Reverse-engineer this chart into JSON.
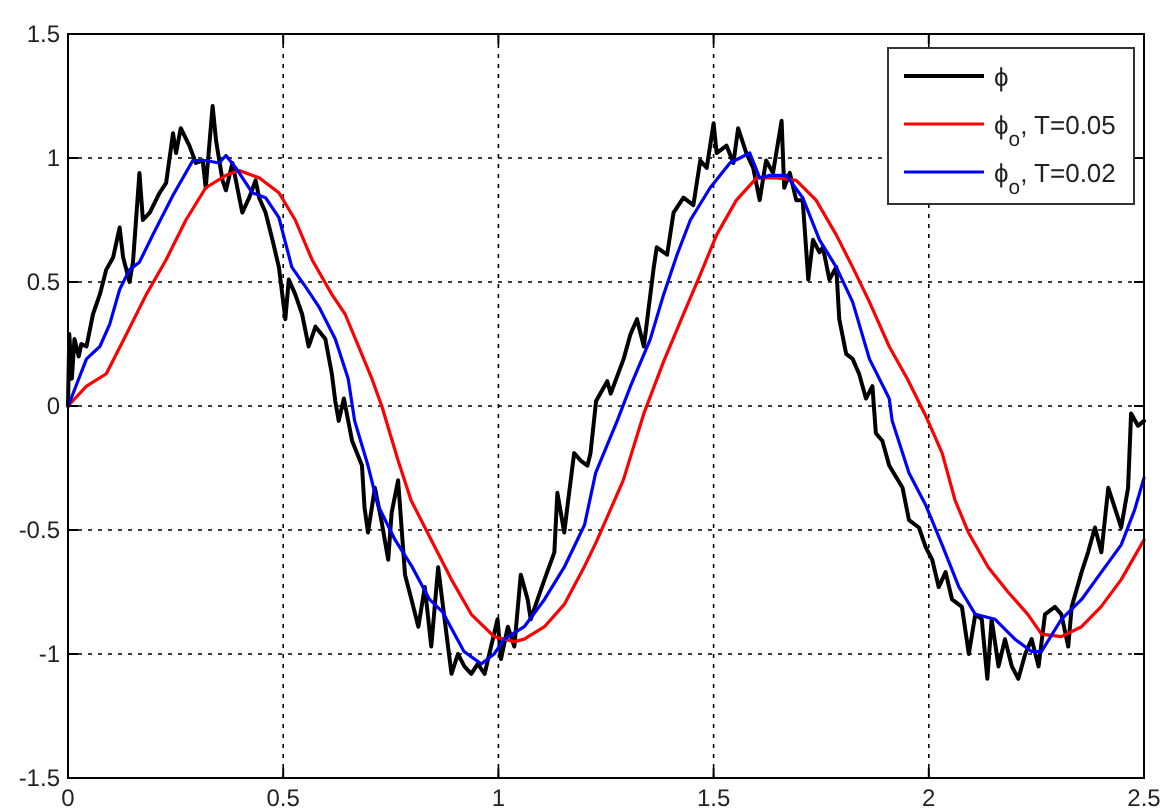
{
  "chart_data": {
    "type": "line",
    "xlim": [
      0,
      2.5
    ],
    "xticks": [
      0,
      0.5,
      1,
      1.5,
      2,
      2.5
    ],
    "ylim": [
      -1.5,
      1.5
    ],
    "yticks": [
      -1.5,
      -1,
      -0.5,
      0,
      0.5,
      1,
      1.5
    ],
    "grid": true,
    "legend": "top right",
    "series": [
      {
        "name": "ϕ",
        "color": "#000000",
        "x": [
          0,
          0.003,
          0.009,
          0.015,
          0.025,
          0.031,
          0.043,
          0.058,
          0.074,
          0.089,
          0.105,
          0.12,
          0.128,
          0.143,
          0.151,
          0.166,
          0.174,
          0.19,
          0.213,
          0.228,
          0.244,
          0.251,
          0.262,
          0.282,
          0.297,
          0.313,
          0.32,
          0.336,
          0.344,
          0.359,
          0.367,
          0.382,
          0.398,
          0.405,
          0.421,
          0.436,
          0.444,
          0.459,
          0.475,
          0.49,
          0.505,
          0.513,
          0.528,
          0.544,
          0.559,
          0.575,
          0.598,
          0.613,
          0.621,
          0.629,
          0.641,
          0.66,
          0.683,
          0.689,
          0.697,
          0.713,
          0.728,
          0.744,
          0.752,
          0.767,
          0.783,
          0.798,
          0.814,
          0.829,
          0.844,
          0.86,
          0.875,
          0.891,
          0.906,
          0.921,
          0.937,
          0.952,
          0.968,
          0.983,
          0.998,
          1.006,
          1.022,
          1.037,
          1.052,
          1.068,
          1.075,
          1.091,
          1.107,
          1.13,
          1.137,
          1.153,
          1.16,
          1.176,
          1.191,
          1.207,
          1.214,
          1.227,
          1.253,
          1.261,
          1.291,
          1.307,
          1.322,
          1.338,
          1.361,
          1.368,
          1.392,
          1.407,
          1.43,
          1.453,
          1.469,
          1.484,
          1.5,
          1.507,
          1.53,
          1.546,
          1.557,
          1.576,
          1.592,
          1.607,
          1.622,
          1.638,
          1.658,
          1.664,
          1.677,
          1.692,
          1.707,
          1.72,
          1.731,
          1.746,
          1.754,
          1.769,
          1.785,
          1.792,
          1.808,
          1.823,
          1.838,
          1.854,
          1.869,
          1.877,
          1.892,
          1.908,
          1.939,
          1.954,
          1.977,
          1.993,
          2.008,
          2.023,
          2.039,
          2.054,
          2.077,
          2.093,
          2.108,
          2.123,
          2.136,
          2.146,
          2.162,
          2.177,
          2.193,
          2.208,
          2.224,
          2.239,
          2.255,
          2.27,
          2.293,
          2.308,
          2.324,
          2.332,
          2.355,
          2.37,
          2.386,
          2.401,
          2.417,
          2.432,
          2.447,
          2.463,
          2.47,
          2.486,
          2.5
        ],
        "values": [
          0,
          0.29,
          0.11,
          0.27,
          0.2,
          0.25,
          0.24,
          0.37,
          0.45,
          0.55,
          0.6,
          0.72,
          0.6,
          0.5,
          0.58,
          0.94,
          0.75,
          0.78,
          0.86,
          0.9,
          1.1,
          1.02,
          1.12,
          1.05,
          0.98,
          0.99,
          0.88,
          1.21,
          1.07,
          0.91,
          0.87,
          0.98,
          0.84,
          0.78,
          0.84,
          0.91,
          0.84,
          0.78,
          0.67,
          0.56,
          0.35,
          0.51,
          0.45,
          0.37,
          0.24,
          0.32,
          0.27,
          0.13,
          0.02,
          -0.06,
          0.03,
          -0.14,
          -0.24,
          -0.41,
          -0.51,
          -0.33,
          -0.46,
          -0.62,
          -0.43,
          -0.3,
          -0.68,
          -0.78,
          -0.89,
          -0.73,
          -0.97,
          -0.65,
          -0.86,
          -1.08,
          -1,
          -1.05,
          -1.08,
          -1.04,
          -1.08,
          -0.97,
          -0.86,
          -1.02,
          -0.89,
          -0.97,
          -0.68,
          -0.78,
          -0.86,
          -0.78,
          -0.7,
          -0.59,
          -0.35,
          -0.51,
          -0.41,
          -0.19,
          -0.22,
          -0.24,
          -0.19,
          0.02,
          0.1,
          0.05,
          0.19,
          0.29,
          0.35,
          0.24,
          0.56,
          0.64,
          0.61,
          0.78,
          0.84,
          0.81,
          0.99,
          0.96,
          1.14,
          1.02,
          1.05,
          0.98,
          1.12,
          1.02,
          0.96,
          0.83,
          0.99,
          0.94,
          1.15,
          0.88,
          0.94,
          0.83,
          0.83,
          0.51,
          0.67,
          0.62,
          0.64,
          0.51,
          0.56,
          0.35,
          0.21,
          0.19,
          0.13,
          0.03,
          0.08,
          -0.11,
          -0.14,
          -0.24,
          -0.33,
          -0.46,
          -0.49,
          -0.57,
          -0.62,
          -0.73,
          -0.67,
          -0.78,
          -0.81,
          -1,
          -0.84,
          -0.86,
          -1.1,
          -0.86,
          -1.05,
          -0.94,
          -1.05,
          -1.1,
          -1,
          -0.94,
          -1.05,
          -0.84,
          -0.81,
          -0.84,
          -0.97,
          -0.81,
          -0.67,
          -0.59,
          -0.49,
          -0.59,
          -0.33,
          -0.41,
          -0.49,
          -0.33,
          -0.03,
          -0.08,
          -0.06
        ]
      },
      {
        "name": "ϕ$_{o}$, T=0.05",
        "color": "#ff0000",
        "x": [
          0,
          0.043,
          0.089,
          0.136,
          0.182,
          0.228,
          0.274,
          0.32,
          0.367,
          0.398,
          0.444,
          0.49,
          0.528,
          0.567,
          0.613,
          0.644,
          0.675,
          0.706,
          0.729,
          0.767,
          0.797,
          0.844,
          0.891,
          0.937,
          0.99,
          1.037,
          1.06,
          1.107,
          1.153,
          1.199,
          1.227,
          1.29,
          1.338,
          1.384,
          1.43,
          1.469,
          1.507,
          1.553,
          1.6,
          1.646,
          1.692,
          1.738,
          1.785,
          1.823,
          1.862,
          1.908,
          1.95,
          1.993,
          2.031,
          2.061,
          2.092,
          2.138,
          2.184,
          2.23,
          2.262,
          2.308,
          2.355,
          2.4,
          2.447,
          2.5
        ],
        "values": [
          0,
          0.08,
          0.13,
          0.29,
          0.45,
          0.59,
          0.75,
          0.88,
          0.93,
          0.95,
          0.92,
          0.86,
          0.75,
          0.59,
          0.45,
          0.37,
          0.24,
          0.11,
          0,
          -0.22,
          -0.38,
          -0.54,
          -0.7,
          -0.84,
          -0.93,
          -0.95,
          -0.94,
          -0.89,
          -0.8,
          -0.65,
          -0.55,
          -0.3,
          -0.03,
          0.18,
          0.37,
          0.53,
          0.69,
          0.83,
          0.92,
          0.92,
          0.91,
          0.83,
          0.69,
          0.56,
          0.42,
          0.24,
          0.11,
          -0.04,
          -0.19,
          -0.38,
          -0.51,
          -0.65,
          -0.75,
          -0.84,
          -0.92,
          -0.93,
          -0.89,
          -0.81,
          -0.7,
          -0.54
        ]
      },
      {
        "name": "ϕ$_{o}$, T=0.02",
        "color": "#0000ff",
        "x": [
          0,
          0.005,
          0.043,
          0.074,
          0.097,
          0.12,
          0.143,
          0.166,
          0.197,
          0.244,
          0.29,
          0.32,
          0.351,
          0.367,
          0.39,
          0.428,
          0.459,
          0.49,
          0.52,
          0.552,
          0.583,
          0.621,
          0.651,
          0.666,
          0.697,
          0.72,
          0.76,
          0.8,
          0.84,
          0.87,
          0.92,
          0.96,
          0.99,
          1.014,
          1.06,
          1.107,
          1.153,
          1.2,
          1.226,
          1.276,
          1.307,
          1.353,
          1.384,
          1.415,
          1.446,
          1.492,
          1.538,
          1.584,
          1.607,
          1.631,
          1.669,
          1.707,
          1.746,
          1.785,
          1.823,
          1.862,
          1.908,
          1.915,
          1.954,
          1.993,
          2.031,
          2.07,
          2.108,
          2.154,
          2.2,
          2.239,
          2.262,
          2.308,
          2.355,
          2.401,
          2.447,
          2.478,
          2.5
        ],
        "values": [
          0,
          0.02,
          0.19,
          0.24,
          0.33,
          0.47,
          0.55,
          0.58,
          0.69,
          0.85,
          0.99,
          0.99,
          0.98,
          1.01,
          0.96,
          0.86,
          0.84,
          0.76,
          0.56,
          0.48,
          0.4,
          0.27,
          0.11,
          -0.06,
          -0.24,
          -0.4,
          -0.54,
          -0.65,
          -0.78,
          -0.83,
          -0.99,
          -1.04,
          -1,
          -0.94,
          -0.89,
          -0.78,
          -0.65,
          -0.48,
          -0.27,
          -0.06,
          0.08,
          0.27,
          0.45,
          0.61,
          0.75,
          0.88,
          0.98,
          1.02,
          0.92,
          0.93,
          0.93,
          0.84,
          0.67,
          0.56,
          0.42,
          0.19,
          0.03,
          -0.06,
          -0.27,
          -0.4,
          -0.56,
          -0.73,
          -0.84,
          -0.86,
          -0.94,
          -0.99,
          -0.99,
          -0.86,
          -0.78,
          -0.67,
          -0.56,
          -0.42,
          -0.29
        ]
      }
    ]
  }
}
